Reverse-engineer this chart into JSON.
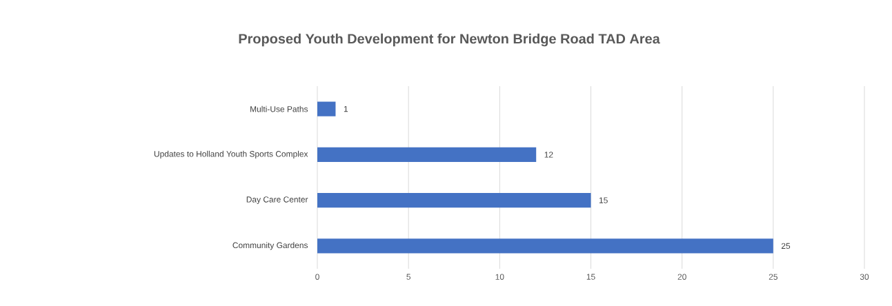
{
  "chart_data": {
    "type": "bar",
    "orientation": "horizontal",
    "title": "Proposed Youth Development for Newton Bridge Road TAD Area",
    "categories": [
      "Multi-Use Paths",
      "Updates to Holland Youth Sports Complex",
      "Day Care Center",
      "Community Gardens"
    ],
    "values": [
      1,
      12,
      15,
      25
    ],
    "color": "#4472c4",
    "xlim": [
      0,
      30
    ],
    "xticks": [
      0,
      5,
      10,
      15,
      20,
      25,
      30
    ],
    "grid": "x",
    "data_labels": true
  }
}
